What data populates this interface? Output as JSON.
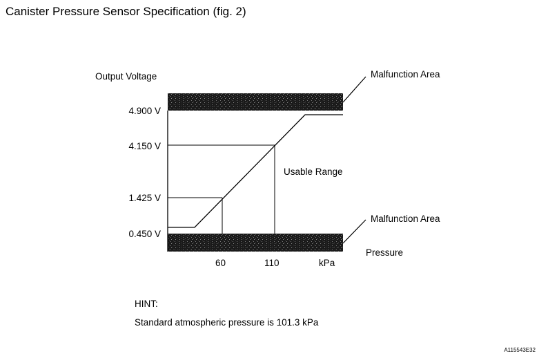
{
  "title": "Canister Pressure Sensor Specification (fig. 2)",
  "diagram": {
    "y_axis_label": "Output Voltage",
    "y_ticks": [
      "4.900 V",
      "4.150 V",
      "1.425 V",
      "0.450 V"
    ],
    "x_ticks": [
      "60",
      "110",
      "kPa"
    ],
    "x_axis_label": "Pressure",
    "malfunction_upper": "Malfunction Area",
    "malfunction_lower": "Malfunction Area",
    "usable_range": "Usable Range"
  },
  "hint": {
    "heading": "HINT:",
    "text": "Standard atmospheric pressure is 101.3 kPa"
  },
  "figure_code": "A115543E32"
}
